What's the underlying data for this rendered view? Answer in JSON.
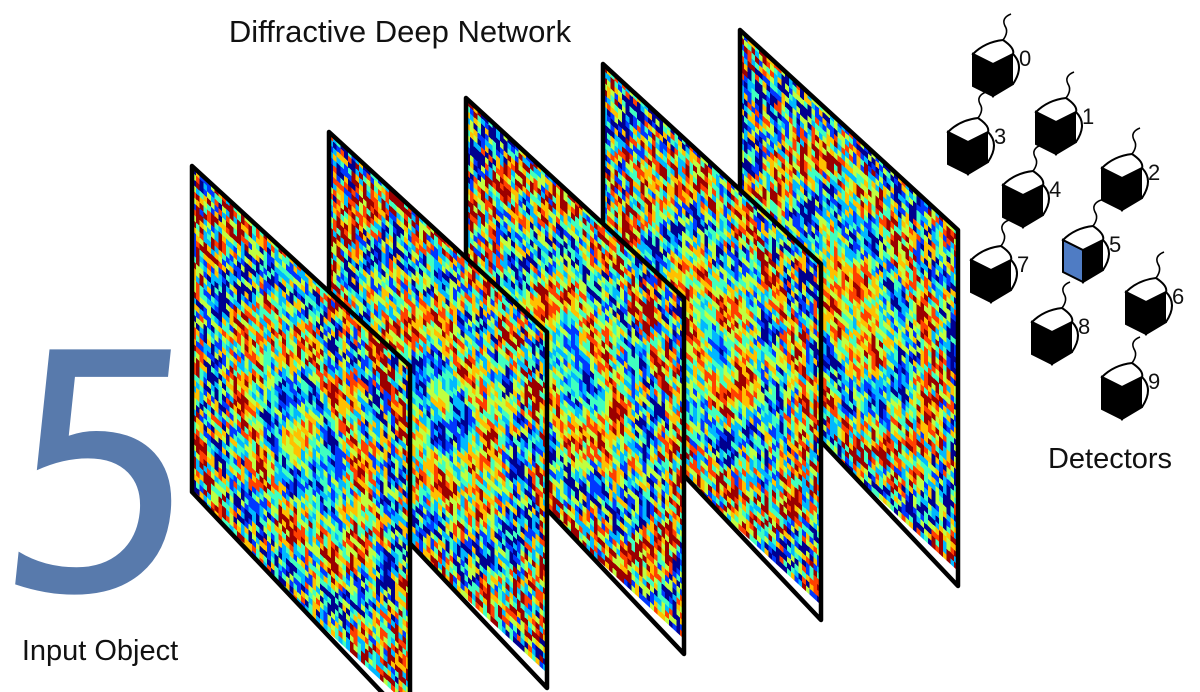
{
  "title": "Diffractive Deep Network",
  "input_label": "Input Object",
  "input_digit": "5",
  "detectors_label": "Detectors",
  "layer_count": 5,
  "colors": {
    "digit": "#4a6fa5",
    "detector_active": "#4f7cc4",
    "detector_dark": "#000000",
    "detector_light": "#ffffff",
    "jet_palette": [
      "#00008f",
      "#0038ff",
      "#00b8ff",
      "#40ffbf",
      "#bfff40",
      "#ffc000",
      "#ff4000",
      "#9b0000"
    ]
  },
  "detectors": [
    {
      "number": "0",
      "active": false
    },
    {
      "number": "1",
      "active": false
    },
    {
      "number": "2",
      "active": false
    },
    {
      "number": "3",
      "active": false
    },
    {
      "number": "4",
      "active": false
    },
    {
      "number": "5",
      "active": true
    },
    {
      "number": "6",
      "active": false
    },
    {
      "number": "7",
      "active": false
    },
    {
      "number": "8",
      "active": false
    },
    {
      "number": "9",
      "active": false
    }
  ]
}
